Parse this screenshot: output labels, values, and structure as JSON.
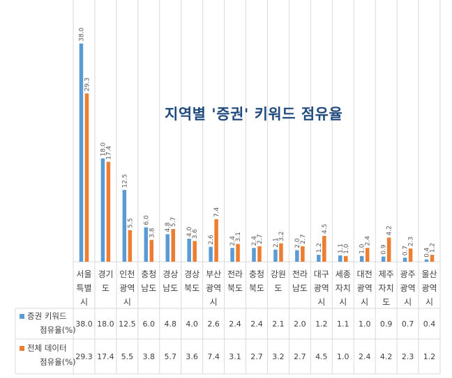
{
  "chart_data": {
    "type": "bar",
    "title": "지역별 '증권' 키워드 점유율",
    "categories": [
      [
        "서울",
        "특별",
        "시"
      ],
      [
        "경기",
        "도"
      ],
      [
        "인천",
        "광역",
        "시"
      ],
      [
        "충청",
        "남도"
      ],
      [
        "경상",
        "남도"
      ],
      [
        "경상",
        "북도"
      ],
      [
        "부산",
        "광역",
        "시"
      ],
      [
        "전라",
        "북도"
      ],
      [
        "충청",
        "북도"
      ],
      [
        "강원",
        "도"
      ],
      [
        "전라",
        "남도"
      ],
      [
        "대구",
        "광역",
        "시"
      ],
      [
        "세종",
        "자치",
        "시"
      ],
      [
        "대전",
        "광역",
        "시"
      ],
      [
        "제주",
        "자치",
        "도"
      ],
      [
        "광주",
        "광역",
        "시"
      ],
      [
        "울산",
        "광역",
        "시"
      ]
    ],
    "series": [
      {
        "name": [
          "증권 키워드",
          "점유율(%)"
        ],
        "color": "#5b9bd5",
        "values": [
          38.0,
          18.0,
          12.5,
          6.0,
          4.8,
          4.0,
          2.6,
          2.4,
          2.4,
          2.1,
          2.0,
          1.2,
          1.1,
          1.0,
          0.9,
          0.7,
          0.4
        ]
      },
      {
        "name": [
          "전체 데이터",
          "점유율(%)"
        ],
        "color": "#ed7d31",
        "values": [
          29.3,
          17.4,
          5.5,
          3.8,
          5.7,
          3.6,
          7.4,
          3.1,
          2.7,
          3.2,
          2.7,
          4.5,
          1.0,
          2.4,
          4.2,
          2.3,
          1.2
        ]
      }
    ],
    "data_labels": true,
    "data_table": true,
    "gridlines": true,
    "ylim": [
      0,
      40
    ]
  }
}
